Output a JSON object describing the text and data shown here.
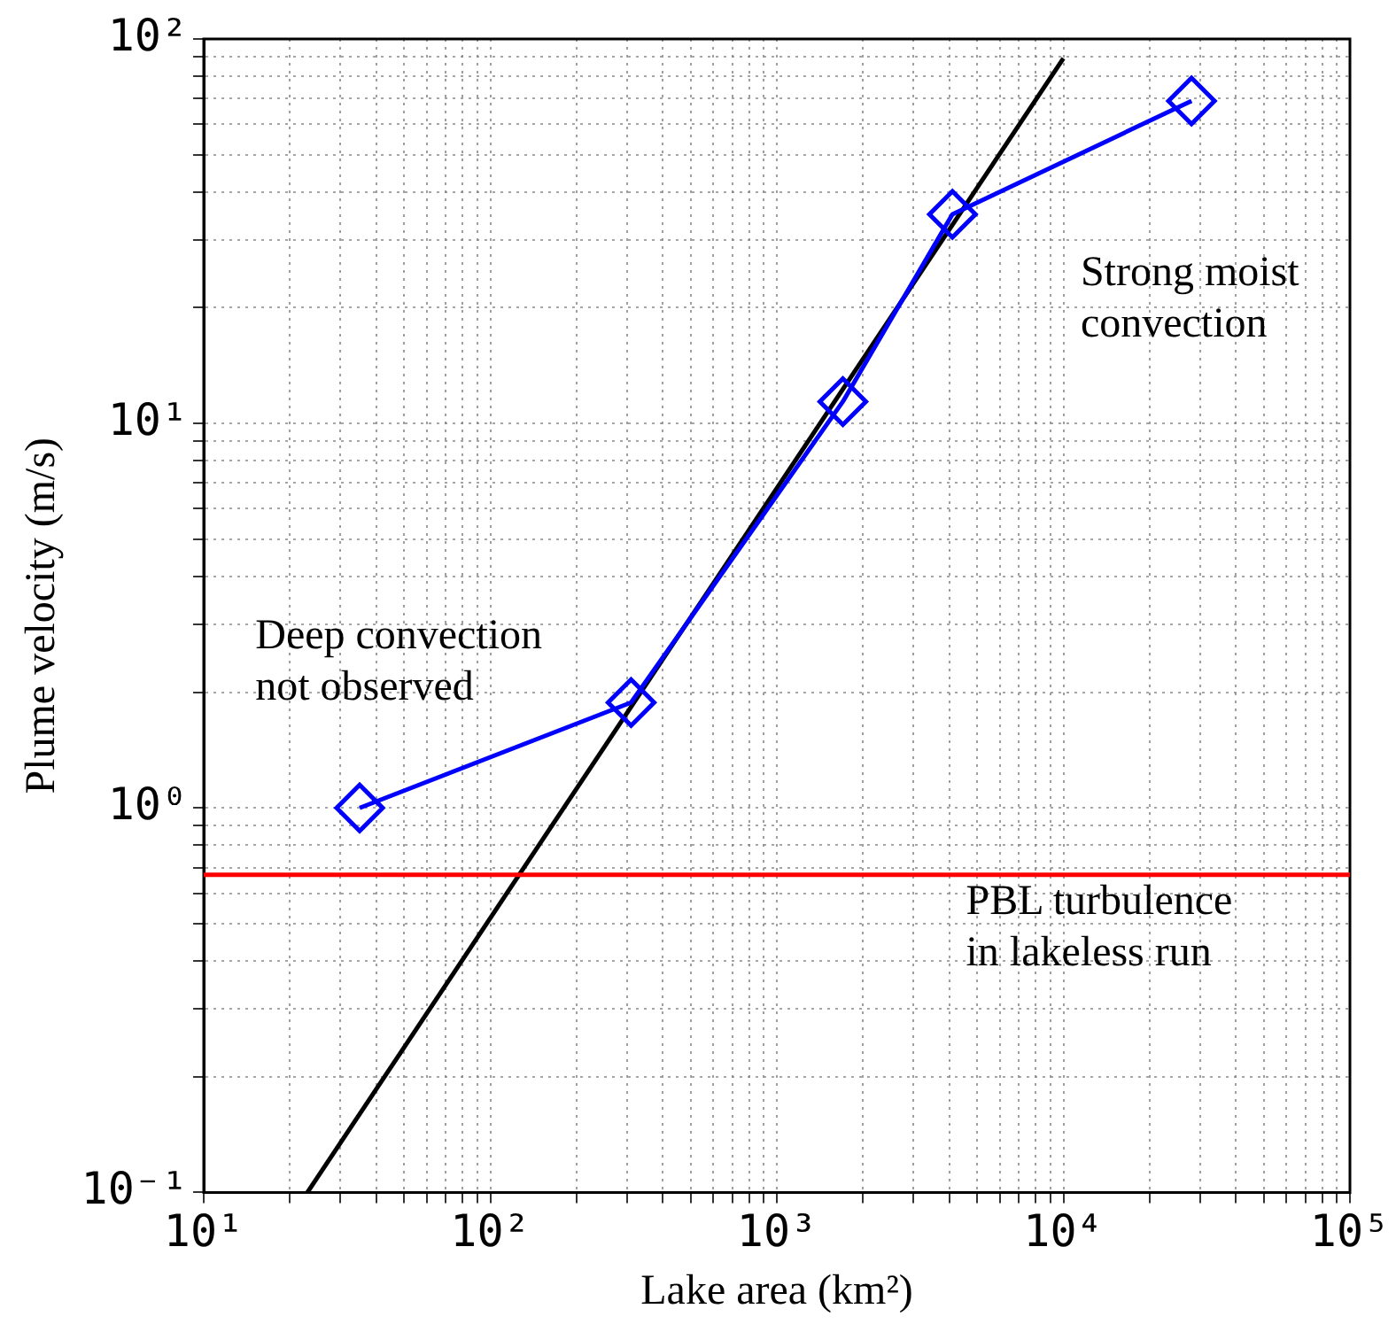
{
  "chart_data": {
    "type": "line",
    "xlabel": "Lake area (km²)",
    "ylabel": "Plume velocity (m/s)",
    "log": "xy",
    "grid": true,
    "legend": false,
    "xlim": [
      10,
      100000
    ],
    "ylim": [
      0.1,
      100
    ],
    "xticks": [
      {
        "value": 10,
        "label": "10¹"
      },
      {
        "value": 20,
        "label": null
      },
      {
        "value": 30,
        "label": null
      },
      {
        "value": 40,
        "label": null
      },
      {
        "value": 50,
        "label": null
      },
      {
        "value": 60,
        "label": null
      },
      {
        "value": 70,
        "label": null
      },
      {
        "value": 80,
        "label": null
      },
      {
        "value": 90,
        "label": null
      },
      {
        "value": 100,
        "label": "10²"
      },
      {
        "value": 200,
        "label": null
      },
      {
        "value": 300,
        "label": null
      },
      {
        "value": 400,
        "label": null
      },
      {
        "value": 500,
        "label": null
      },
      {
        "value": 600,
        "label": null
      },
      {
        "value": 700,
        "label": null
      },
      {
        "value": 800,
        "label": null
      },
      {
        "value": 900,
        "label": null
      },
      {
        "value": 1000,
        "label": "10³"
      },
      {
        "value": 2000,
        "label": null
      },
      {
        "value": 3000,
        "label": null
      },
      {
        "value": 4000,
        "label": null
      },
      {
        "value": 5000,
        "label": null
      },
      {
        "value": 6000,
        "label": null
      },
      {
        "value": 7000,
        "label": null
      },
      {
        "value": 8000,
        "label": null
      },
      {
        "value": 9000,
        "label": null
      },
      {
        "value": 10000,
        "label": "10⁴"
      },
      {
        "value": 20000,
        "label": null
      },
      {
        "value": 30000,
        "label": null
      },
      {
        "value": 40000,
        "label": null
      },
      {
        "value": 50000,
        "label": null
      },
      {
        "value": 60000,
        "label": null
      },
      {
        "value": 70000,
        "label": null
      },
      {
        "value": 80000,
        "label": null
      },
      {
        "value": 90000,
        "label": null
      },
      {
        "value": 100000,
        "label": "10⁵"
      }
    ],
    "yticks": [
      {
        "value": 0.1,
        "label": "10⁻¹"
      },
      {
        "value": 0.2,
        "label": null
      },
      {
        "value": 0.3,
        "label": null
      },
      {
        "value": 0.4,
        "label": null
      },
      {
        "value": 0.5,
        "label": null
      },
      {
        "value": 0.6,
        "label": null
      },
      {
        "value": 0.7,
        "label": null
      },
      {
        "value": 0.8,
        "label": null
      },
      {
        "value": 0.9,
        "label": null
      },
      {
        "value": 1,
        "label": "10⁰"
      },
      {
        "value": 2,
        "label": null
      },
      {
        "value": 3,
        "label": null
      },
      {
        "value": 4,
        "label": null
      },
      {
        "value": 5,
        "label": null
      },
      {
        "value": 6,
        "label": null
      },
      {
        "value": 7,
        "label": null
      },
      {
        "value": 8,
        "label": null
      },
      {
        "value": 9,
        "label": null
      },
      {
        "value": 10,
        "label": "10¹"
      },
      {
        "value": 20,
        "label": null
      },
      {
        "value": 30,
        "label": null
      },
      {
        "value": 40,
        "label": null
      },
      {
        "value": 50,
        "label": null
      },
      {
        "value": 60,
        "label": null
      },
      {
        "value": 70,
        "label": null
      },
      {
        "value": 80,
        "label": null
      },
      {
        "value": 90,
        "label": null
      },
      {
        "value": 100,
        "label": "10²"
      }
    ],
    "series": [
      {
        "type": "line",
        "color": "#0000ff",
        "marker": "diamond",
        "x": [
          35,
          310,
          1700,
          4100,
          28000
        ],
        "values": [
          1.0,
          1.88,
          11.4,
          35,
          69
        ]
      },
      {
        "type": "line",
        "color": "#000000",
        "marker": "none",
        "x": [
          23,
          10000
        ],
        "values": [
          0.1,
          89
        ]
      }
    ],
    "ref_lines": [
      {
        "axis": "y",
        "value": 0.67,
        "label": "PBL turbulence in lakeless run",
        "color": "#ff0000"
      }
    ],
    "annotations": [
      "Deep convection not observed",
      "Strong moist convection"
    ]
  }
}
